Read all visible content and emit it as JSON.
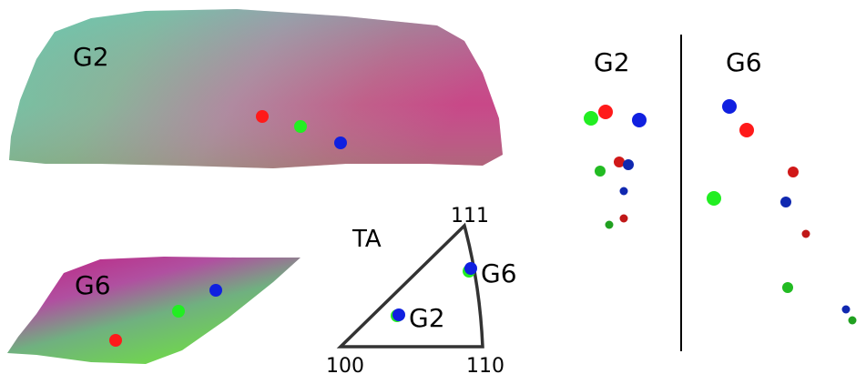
{
  "maps": {
    "g2": {
      "label": "G2"
    },
    "g6": {
      "label": "G6"
    }
  },
  "ipf": {
    "title": "TA",
    "corner_111": "111",
    "corner_100": "100",
    "corner_110": "110",
    "point_g2_label": "G2",
    "point_g6_label": "G6"
  },
  "pole_panels": {
    "left_label": "G2",
    "right_label": "G6"
  },
  "colors": {
    "red": "#ff1a1a",
    "green": "#22ee22",
    "blue": "#1020e0",
    "dark_red": "#c01818",
    "dark_green": "#20a020",
    "dark_blue": "#1028b0",
    "triangle_stroke": "#333333"
  }
}
